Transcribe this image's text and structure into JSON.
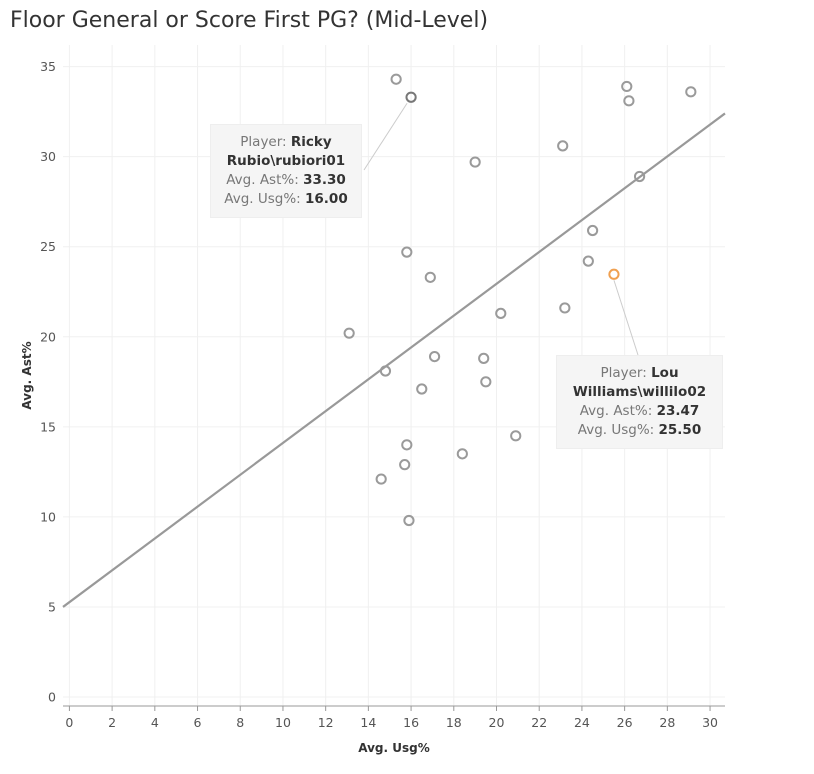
{
  "title": "Floor General or Score First PG? (Mid-Level)",
  "chart_data": {
    "type": "scatter",
    "xlabel": "Avg. Usg%",
    "ylabel": "Avg. Ast%",
    "xlim": [
      -0.3,
      30.7
    ],
    "ylim": [
      -0.5,
      36.2
    ],
    "x_ticks": [
      "0",
      "2",
      "4",
      "6",
      "8",
      "10",
      "12",
      "14",
      "16",
      "18",
      "20",
      "22",
      "24",
      "26",
      "28",
      "30"
    ],
    "y_ticks": [
      "0",
      "5",
      "10",
      "15",
      "20",
      "25",
      "30",
      "35"
    ],
    "grid": true,
    "trend_line": {
      "x1": -0.3,
      "y1": 5.0,
      "x2": 30.7,
      "y2": 32.4
    },
    "points": [
      {
        "x": 15.3,
        "y": 34.3
      },
      {
        "x": 16.0,
        "y": 33.3,
        "highlight": "dark"
      },
      {
        "x": 26.1,
        "y": 33.9
      },
      {
        "x": 26.2,
        "y": 33.1
      },
      {
        "x": 29.1,
        "y": 33.6
      },
      {
        "x": 19.0,
        "y": 29.7
      },
      {
        "x": 23.1,
        "y": 30.6
      },
      {
        "x": 26.7,
        "y": 28.9
      },
      {
        "x": 24.5,
        "y": 25.9
      },
      {
        "x": 15.8,
        "y": 24.7
      },
      {
        "x": 24.3,
        "y": 24.2
      },
      {
        "x": 16.9,
        "y": 23.3
      },
      {
        "x": 25.5,
        "y": 23.47,
        "highlight": "orange"
      },
      {
        "x": 23.2,
        "y": 21.6
      },
      {
        "x": 20.2,
        "y": 21.3
      },
      {
        "x": 13.1,
        "y": 20.2
      },
      {
        "x": 17.1,
        "y": 18.9
      },
      {
        "x": 19.4,
        "y": 18.8
      },
      {
        "x": 14.8,
        "y": 18.1
      },
      {
        "x": 19.5,
        "y": 17.5
      },
      {
        "x": 16.5,
        "y": 17.1
      },
      {
        "x": 20.9,
        "y": 14.5
      },
      {
        "x": 15.8,
        "y": 14.0
      },
      {
        "x": 18.4,
        "y": 13.5
      },
      {
        "x": 15.7,
        "y": 12.9
      },
      {
        "x": 14.6,
        "y": 12.1
      },
      {
        "x": 15.9,
        "y": 9.8
      }
    ],
    "colors": {
      "point": "#9a9a9a",
      "highlight_dark": "#777777",
      "highlight_orange": "#f0a050",
      "trend": "#999999",
      "grid": "#f0f0f0"
    }
  },
  "tooltips": [
    {
      "player_label": "Player:",
      "player_name": "Ricky Rubio\\rubiori01",
      "ast_label": "Avg. Ast%:",
      "ast_value": "33.30",
      "usg_label": "Avg. Usg%:",
      "usg_value": "16.00"
    },
    {
      "player_label": "Player:",
      "player_name": "Lou Williams\\willilo02",
      "ast_label": "Avg. Ast%:",
      "ast_value": "23.47",
      "usg_label": "Avg. Usg%:",
      "usg_value": "25.50"
    }
  ]
}
